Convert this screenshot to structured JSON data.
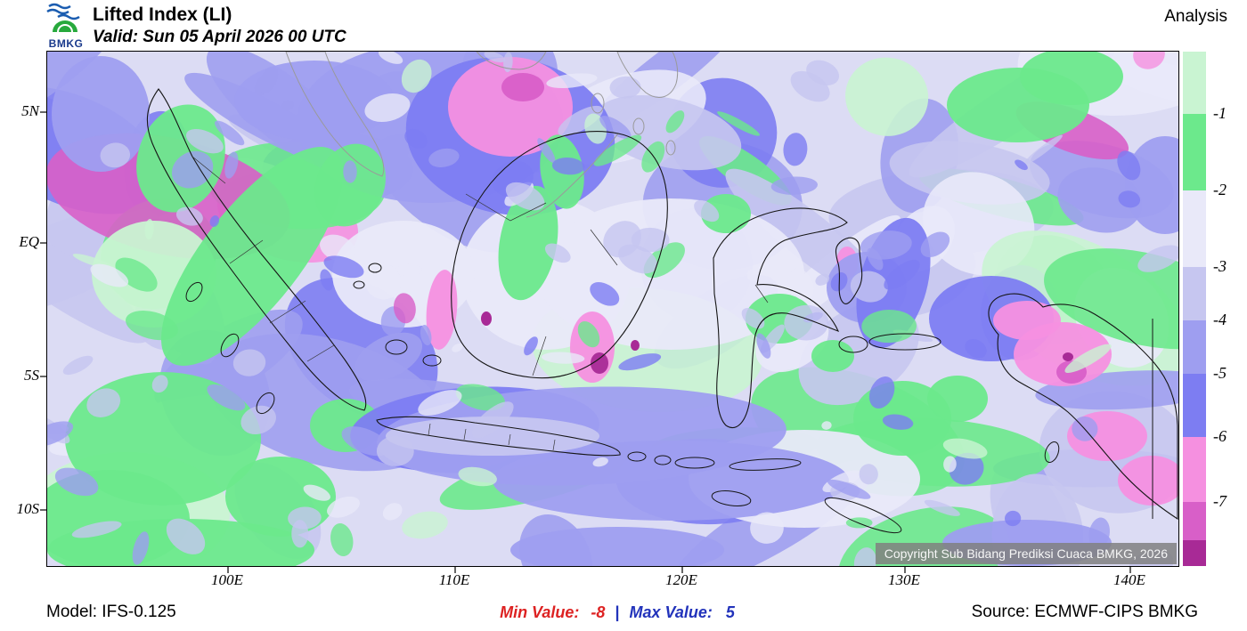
{
  "header": {
    "logo_text": "BMKG",
    "title": "Lifted Index (LI)",
    "valid": "Valid: Sun 05 April 2026 00 UTC",
    "mode": "Analysis"
  },
  "map": {
    "y_ticks": [
      "5N",
      "EQ",
      "5S",
      "10S"
    ],
    "x_ticks": [
      "100E",
      "110E",
      "120E",
      "130E",
      "140E"
    ],
    "copyright": "Copyright Sub Bidang Prediksi Cuaca BMKG, 2026"
  },
  "colorbar": {
    "labels": [
      "-1",
      "-2",
      "-3",
      "-4",
      "-5",
      "-6",
      "-7"
    ],
    "segment_colors": [
      "#c9f4d2",
      "#6ce98c",
      "#e9e9f9",
      "#c6c6f0",
      "#9e9ef0",
      "#7d7df2",
      "#f590e0",
      "#d85fc8",
      "#a82a96"
    ]
  },
  "palette": {
    "base": "#dcdcf4",
    "pale": "#e9e9f9",
    "light": "#c6c6f0",
    "medium": "#9e9ef0",
    "deep": "#7d7df2",
    "green": "#6ce98c",
    "palegreen": "#c9f4d2",
    "pink": "#f590e0",
    "orchid": "#d85fc8",
    "magenta": "#a82a96"
  },
  "footer": {
    "model": "Model: IFS-0.125",
    "min_label": "Min Value:",
    "min_value": "-8",
    "divider": "|",
    "max_label": "Max Value:",
    "max_value": "5",
    "source": "Source: ECMWF-CIPS BMKG"
  }
}
